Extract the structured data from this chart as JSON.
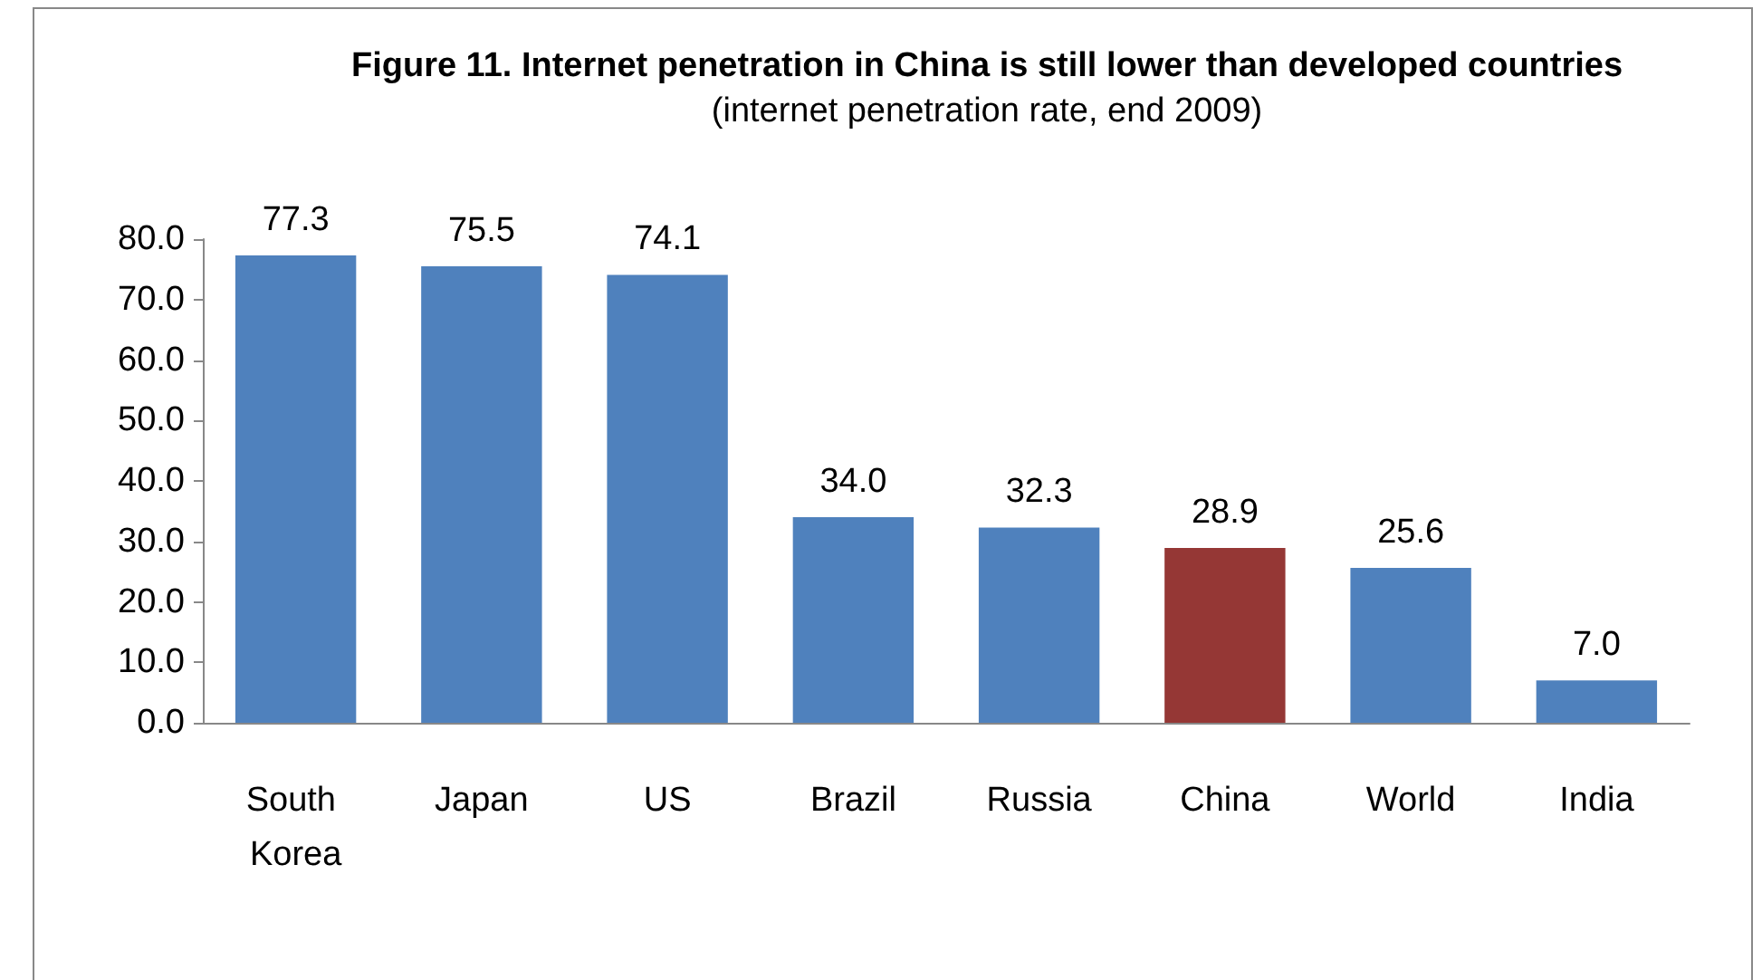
{
  "chart_data": {
    "type": "bar",
    "title": "Figure 11. Internet penetration in China is still lower than developed countries",
    "subtitle": "(internet penetration rate, end 2009)",
    "categories": [
      "South Korea",
      "Japan",
      "US",
      "Brazil",
      "Russia",
      "China",
      "World",
      "India"
    ],
    "values": [
      77.3,
      75.5,
      74.1,
      34.0,
      32.3,
      28.9,
      25.6,
      7.0
    ],
    "colors": [
      "#4f81bd",
      "#4f81bd",
      "#4f81bd",
      "#4f81bd",
      "#4f81bd",
      "#953735",
      "#4f81bd",
      "#4f81bd"
    ],
    "value_labels": [
      "77.3",
      "75.5",
      "74.1",
      "34.0",
      "32.3",
      "28.9",
      "25.6",
      "7.0"
    ],
    "ylim": [
      0,
      80
    ],
    "yticks": [
      {
        "value": 0,
        "label": "0.0"
      },
      {
        "value": 10,
        "label": "10.0"
      },
      {
        "value": 20,
        "label": "20.0"
      },
      {
        "value": 30,
        "label": "30.0"
      },
      {
        "value": 40,
        "label": "40.0"
      },
      {
        "value": 50,
        "label": "50.0"
      },
      {
        "value": 60,
        "label": "60.0"
      },
      {
        "value": 70,
        "label": "70.0"
      },
      {
        "value": 80,
        "label": "80.0"
      }
    ],
    "grid": false
  }
}
